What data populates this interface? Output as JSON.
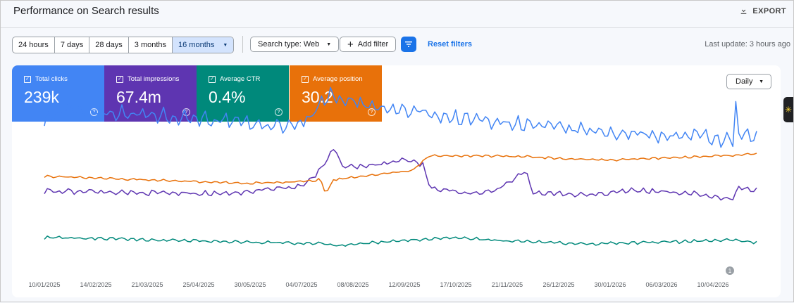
{
  "header": {
    "title": "Performance on Search results",
    "export_label": "EXPORT"
  },
  "toolbar": {
    "ranges": [
      "24 hours",
      "7 days",
      "28 days",
      "3 months",
      "16 months"
    ],
    "search_type": "Search type: Web",
    "add_filter": "Add filter",
    "reset_filters": "Reset filters",
    "last_update": "Last update: 3 hours ago"
  },
  "metrics": [
    {
      "label": "Total clicks",
      "value": "239k",
      "color": "#4285f4"
    },
    {
      "label": "Total impressions",
      "value": "67.4m",
      "color": "#5e35b1"
    },
    {
      "label": "Average CTR",
      "value": "0.4%",
      "color": "#00897b"
    },
    {
      "label": "Average position",
      "value": "30.2",
      "color": "#e8710a"
    }
  ],
  "granularity": "Daily",
  "annotation_marker": "1",
  "chart_data": {
    "type": "line",
    "title": "",
    "xlabel": "",
    "ylabel": "",
    "x_ticks": [
      "10/01/2025",
      "14/02/2025",
      "21/03/2025",
      "25/04/2025",
      "30/05/2025",
      "04/07/2025",
      "08/08/2025",
      "12/09/2025",
      "17/10/2025",
      "21/11/2025",
      "26/12/2025",
      "30/01/2026",
      "06/03/2026",
      "10/04/2026"
    ],
    "x_range": [
      "2025-01-01",
      "2026-04-24"
    ],
    "independent_y_axes": true,
    "grid": false,
    "series": [
      {
        "name": "Total clicks",
        "color": "#4285f4",
        "noise": 14,
        "points": [
          [
            "2025-01-01",
            240
          ],
          [
            "2025-01-20",
            255
          ],
          [
            "2025-02-15",
            250
          ],
          [
            "2025-03-15",
            245
          ],
          [
            "2025-04-15",
            240
          ],
          [
            "2025-05-15",
            230
          ],
          [
            "2025-06-10",
            225
          ],
          [
            "2025-06-28",
            238
          ],
          [
            "2025-07-06",
            270
          ],
          [
            "2025-07-14",
            280
          ],
          [
            "2025-07-20",
            272
          ],
          [
            "2025-08-15",
            255
          ],
          [
            "2025-09-12",
            250
          ],
          [
            "2025-10-01",
            240
          ],
          [
            "2025-11-01",
            235
          ],
          [
            "2025-12-01",
            225
          ],
          [
            "2026-01-01",
            218
          ],
          [
            "2026-02-01",
            212
          ],
          [
            "2026-03-15",
            208
          ],
          [
            "2026-04-08",
            200
          ],
          [
            "2026-04-10",
            258
          ],
          [
            "2026-04-12",
            210
          ],
          [
            "2026-04-24",
            205
          ]
        ]
      },
      {
        "name": "Total impressions",
        "color": "#5e35b1",
        "noise": 5,
        "points": [
          [
            "2025-01-01",
            115
          ],
          [
            "2025-03-01",
            112
          ],
          [
            "2025-05-01",
            110
          ],
          [
            "2025-06-01",
            118
          ],
          [
            "2025-06-25",
            125
          ],
          [
            "2025-07-05",
            150
          ],
          [
            "2025-07-15",
            190
          ],
          [
            "2025-07-20",
            155
          ],
          [
            "2025-08-15",
            160
          ],
          [
            "2025-09-01",
            170
          ],
          [
            "2025-09-12",
            160
          ],
          [
            "2025-09-17",
            120
          ],
          [
            "2025-10-15",
            110
          ],
          [
            "2025-11-01",
            118
          ],
          [
            "2025-11-20",
            148
          ],
          [
            "2025-11-25",
            112
          ],
          [
            "2026-01-01",
            108
          ],
          [
            "2026-02-01",
            116
          ],
          [
            "2026-03-15",
            110
          ],
          [
            "2026-04-08",
            100
          ],
          [
            "2026-04-12",
            120
          ],
          [
            "2026-04-24",
            116
          ]
        ]
      },
      {
        "name": "Average CTR",
        "color": "#00897b",
        "noise": 3,
        "points": [
          [
            "2025-01-01",
            35
          ],
          [
            "2025-02-15",
            33
          ],
          [
            "2025-04-01",
            30
          ],
          [
            "2025-05-01",
            28
          ],
          [
            "2025-07-05",
            25
          ],
          [
            "2025-07-15",
            21
          ],
          [
            "2025-08-15",
            27
          ],
          [
            "2025-10-01",
            35
          ],
          [
            "2025-11-01",
            30
          ],
          [
            "2026-01-01",
            24
          ],
          [
            "2026-03-01",
            28
          ],
          [
            "2026-04-10",
            31
          ],
          [
            "2026-04-24",
            26
          ]
        ]
      },
      {
        "name": "Average position",
        "color": "#e8710a",
        "noise": 2,
        "points": [
          [
            "2025-01-01",
            140
          ],
          [
            "2025-02-15",
            136
          ],
          [
            "2025-04-01",
            132
          ],
          [
            "2025-05-15",
            128
          ],
          [
            "2025-06-15",
            130
          ],
          [
            "2025-07-01",
            132
          ],
          [
            "2025-07-05",
            136
          ],
          [
            "2025-07-09",
            110
          ],
          [
            "2025-07-14",
            134
          ],
          [
            "2025-08-15",
            144
          ],
          [
            "2025-09-05",
            150
          ],
          [
            "2025-09-16",
            175
          ],
          [
            "2025-10-15",
            175
          ],
          [
            "2025-11-20",
            174
          ],
          [
            "2025-12-15",
            170
          ],
          [
            "2026-01-15",
            168
          ],
          [
            "2026-03-01",
            172
          ],
          [
            "2026-04-08",
            176
          ],
          [
            "2026-04-24",
            178
          ]
        ]
      }
    ]
  }
}
